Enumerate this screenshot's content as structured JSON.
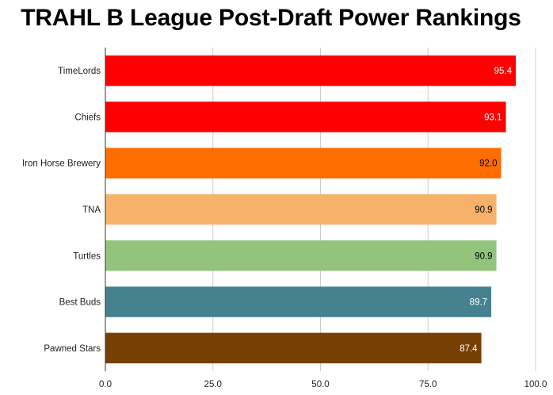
{
  "chart_data": {
    "type": "bar",
    "orientation": "horizontal",
    "title": "TRAHL B League Post-Draft Power Rankings",
    "xlabel": "",
    "ylabel": "",
    "xlim": [
      0,
      100
    ],
    "x_ticks": [
      "0.0",
      "25.0",
      "50.0",
      "75.0",
      "100.0"
    ],
    "grid": true,
    "legend": "none",
    "categories": [
      "TimeLords",
      "Chiefs",
      "Iron Horse Brewery",
      "TNA",
      "Turtles",
      "Best Buds",
      "Pawned Stars"
    ],
    "values": [
      95.4,
      93.1,
      92.0,
      90.9,
      90.9,
      89.7,
      87.4
    ],
    "value_labels": [
      "95.4",
      "93.1",
      "92.0",
      "90.9",
      "90.9",
      "89.7",
      "87.4"
    ],
    "colors": [
      "#ff0000",
      "#ff0000",
      "#ff6d01",
      "#f6b26b",
      "#93c47d",
      "#45818e",
      "#783f04"
    ],
    "label_colors": [
      "#ffffff",
      "#ffffff",
      "#000000",
      "#000000",
      "#000000",
      "#ffffff",
      "#ffffff"
    ]
  }
}
